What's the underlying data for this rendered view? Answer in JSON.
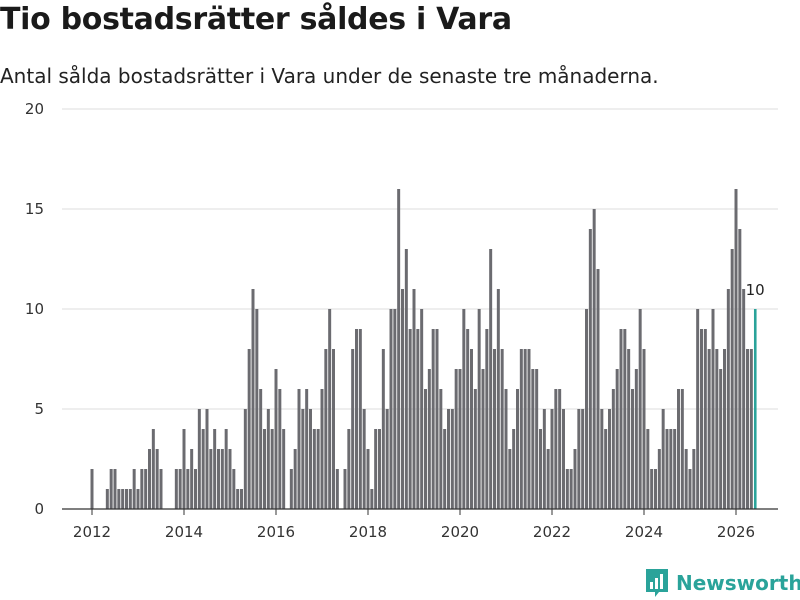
{
  "chart_data": {
    "type": "bar",
    "title": "Tio bostadsrätter såldes i Vara",
    "subtitle": "Antal sålda bostadsrätter i Vara under de senaste tre månaderna.",
    "xlabel": "",
    "ylabel": "",
    "ylim": [
      0,
      20
    ],
    "y_ticks": [
      "0",
      "5",
      "10",
      "15",
      "20"
    ],
    "x_ticks": [
      {
        "year": 2012,
        "label": "2012"
      },
      {
        "year": 2014,
        "label": "2014"
      },
      {
        "year": 2016,
        "label": "2016"
      },
      {
        "year": 2018,
        "label": "2018"
      },
      {
        "year": 2020,
        "label": "2020"
      },
      {
        "year": 2022,
        "label": "2022"
      },
      {
        "year": 2024,
        "label": "2024"
      },
      {
        "year": 2026,
        "label": "2026"
      }
    ],
    "series_start": "2012-01",
    "values": [
      2,
      0,
      0,
      0,
      1,
      2,
      2,
      1,
      1,
      1,
      1,
      2,
      1,
      2,
      2,
      3,
      4,
      3,
      2,
      0,
      0,
      0,
      2,
      2,
      4,
      2,
      3,
      2,
      5,
      4,
      5,
      3,
      4,
      3,
      3,
      4,
      3,
      2,
      1,
      1,
      5,
      8,
      11,
      10,
      6,
      4,
      5,
      4,
      7,
      6,
      4,
      0,
      2,
      3,
      6,
      5,
      6,
      5,
      4,
      4,
      6,
      8,
      10,
      8,
      2,
      0,
      2,
      4,
      8,
      9,
      9,
      5,
      3,
      1,
      4,
      4,
      8,
      5,
      10,
      10,
      16,
      11,
      13,
      9,
      11,
      9,
      10,
      6,
      7,
      9,
      9,
      6,
      4,
      5,
      5,
      7,
      7,
      10,
      9,
      8,
      6,
      10,
      7,
      9,
      13,
      8,
      11,
      8,
      6,
      3,
      4,
      6,
      8,
      8,
      8,
      7,
      7,
      4,
      5,
      3,
      5,
      6,
      6,
      5,
      2,
      2,
      3,
      5,
      5,
      10,
      14,
      15,
      12,
      5,
      4,
      5,
      6,
      7,
      9,
      9,
      8,
      6,
      7,
      10,
      8,
      4,
      2,
      2,
      3,
      5,
      4,
      4,
      4,
      6,
      6,
      3,
      2,
      3,
      10,
      9,
      9,
      8,
      10,
      8,
      7,
      8,
      11,
      13,
      16,
      14,
      11,
      8,
      8,
      10
    ],
    "highlight_index": -1,
    "last_value_label": "10",
    "colors": {
      "bar": "#6b6b70",
      "highlight": "#2aa39a",
      "grid": "#dddddd",
      "axis": "#333333"
    }
  },
  "brand": {
    "name": "Newsworthy",
    "icon": "newsworthy-logo-icon"
  }
}
